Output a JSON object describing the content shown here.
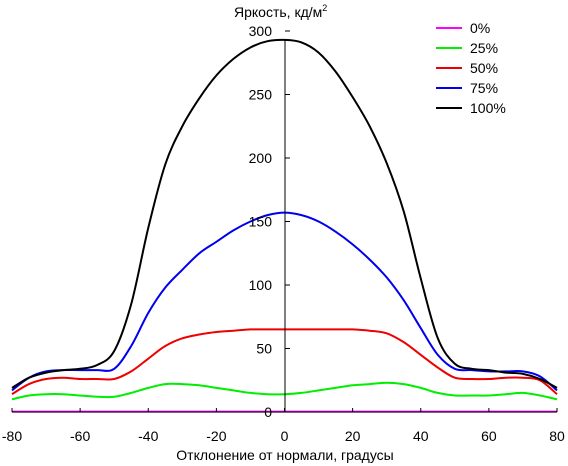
{
  "chart_data": {
    "type": "line",
    "title": "",
    "ylabel_main": "Яркость, кд/м",
    "ylabel_sup": "2",
    "xlabel": "Отклонение от нормали, градусы",
    "xlim": [
      -80,
      80
    ],
    "ylim": [
      0,
      300
    ],
    "xticks": [
      -80,
      -60,
      -40,
      -20,
      0,
      20,
      40,
      60,
      80
    ],
    "yticks": [
      0,
      50,
      100,
      150,
      200,
      250,
      300
    ],
    "xtick_labels": [
      "-80",
      "-60",
      "-40",
      "-20",
      "0",
      "20",
      "40",
      "60",
      "80"
    ],
    "ytick_labels": [
      "0",
      "50",
      "100",
      "150",
      "200",
      "250",
      "300"
    ],
    "grid": false,
    "legend_position": "top-right",
    "x": [
      -80,
      -75,
      -70,
      -65,
      -60,
      -55,
      -50,
      -45,
      -40,
      -35,
      -30,
      -25,
      -20,
      -15,
      -10,
      -5,
      0,
      5,
      10,
      15,
      20,
      25,
      30,
      35,
      40,
      45,
      50,
      55,
      60,
      65,
      70,
      75,
      80
    ],
    "series": [
      {
        "name": "0%",
        "color": "#ff00ff",
        "values": [
          0.3,
          0.3,
          0.3,
          0.3,
          0.3,
          0.3,
          0.3,
          0.3,
          0.3,
          0.3,
          0.3,
          0.3,
          0.3,
          0.3,
          0.3,
          0.3,
          0.3,
          0.3,
          0.3,
          0.3,
          0.3,
          0.3,
          0.3,
          0.3,
          0.3,
          0.3,
          0.3,
          0.3,
          0.3,
          0.3,
          0.3,
          0.3,
          0.3
        ]
      },
      {
        "name": "25%",
        "color": "#00ee00",
        "values": [
          10,
          13,
          14,
          14,
          13,
          12,
          12,
          15,
          19,
          22,
          22,
          21,
          19,
          17,
          15,
          14,
          14,
          15,
          17,
          19,
          21,
          22,
          23,
          22,
          19,
          15,
          13,
          13,
          13,
          14,
          15,
          13,
          10
        ]
      },
      {
        "name": "50%",
        "color": "#ee0000",
        "values": [
          14,
          22,
          26,
          27,
          26,
          26,
          26,
          32,
          42,
          52,
          58,
          61,
          63,
          64,
          65,
          65,
          65,
          65,
          65,
          65,
          65,
          64,
          62,
          55,
          45,
          35,
          27,
          26,
          26,
          27,
          27,
          25,
          14
        ]
      },
      {
        "name": "75%",
        "color": "#0000ee",
        "values": [
          17,
          27,
          32,
          33,
          33,
          33,
          34,
          52,
          78,
          98,
          112,
          125,
          134,
          143,
          150,
          155,
          157,
          155,
          150,
          142,
          132,
          120,
          106,
          88,
          66,
          45,
          34,
          33,
          32,
          32,
          32,
          28,
          17
        ]
      },
      {
        "name": "100%",
        "color": "#000000",
        "values": [
          19,
          27,
          31,
          33,
          34,
          37,
          48,
          85,
          145,
          195,
          225,
          247,
          265,
          278,
          287,
          292,
          293,
          291,
          283,
          268,
          248,
          225,
          196,
          158,
          105,
          58,
          38,
          34,
          33,
          31,
          30,
          26,
          19
        ]
      }
    ]
  }
}
